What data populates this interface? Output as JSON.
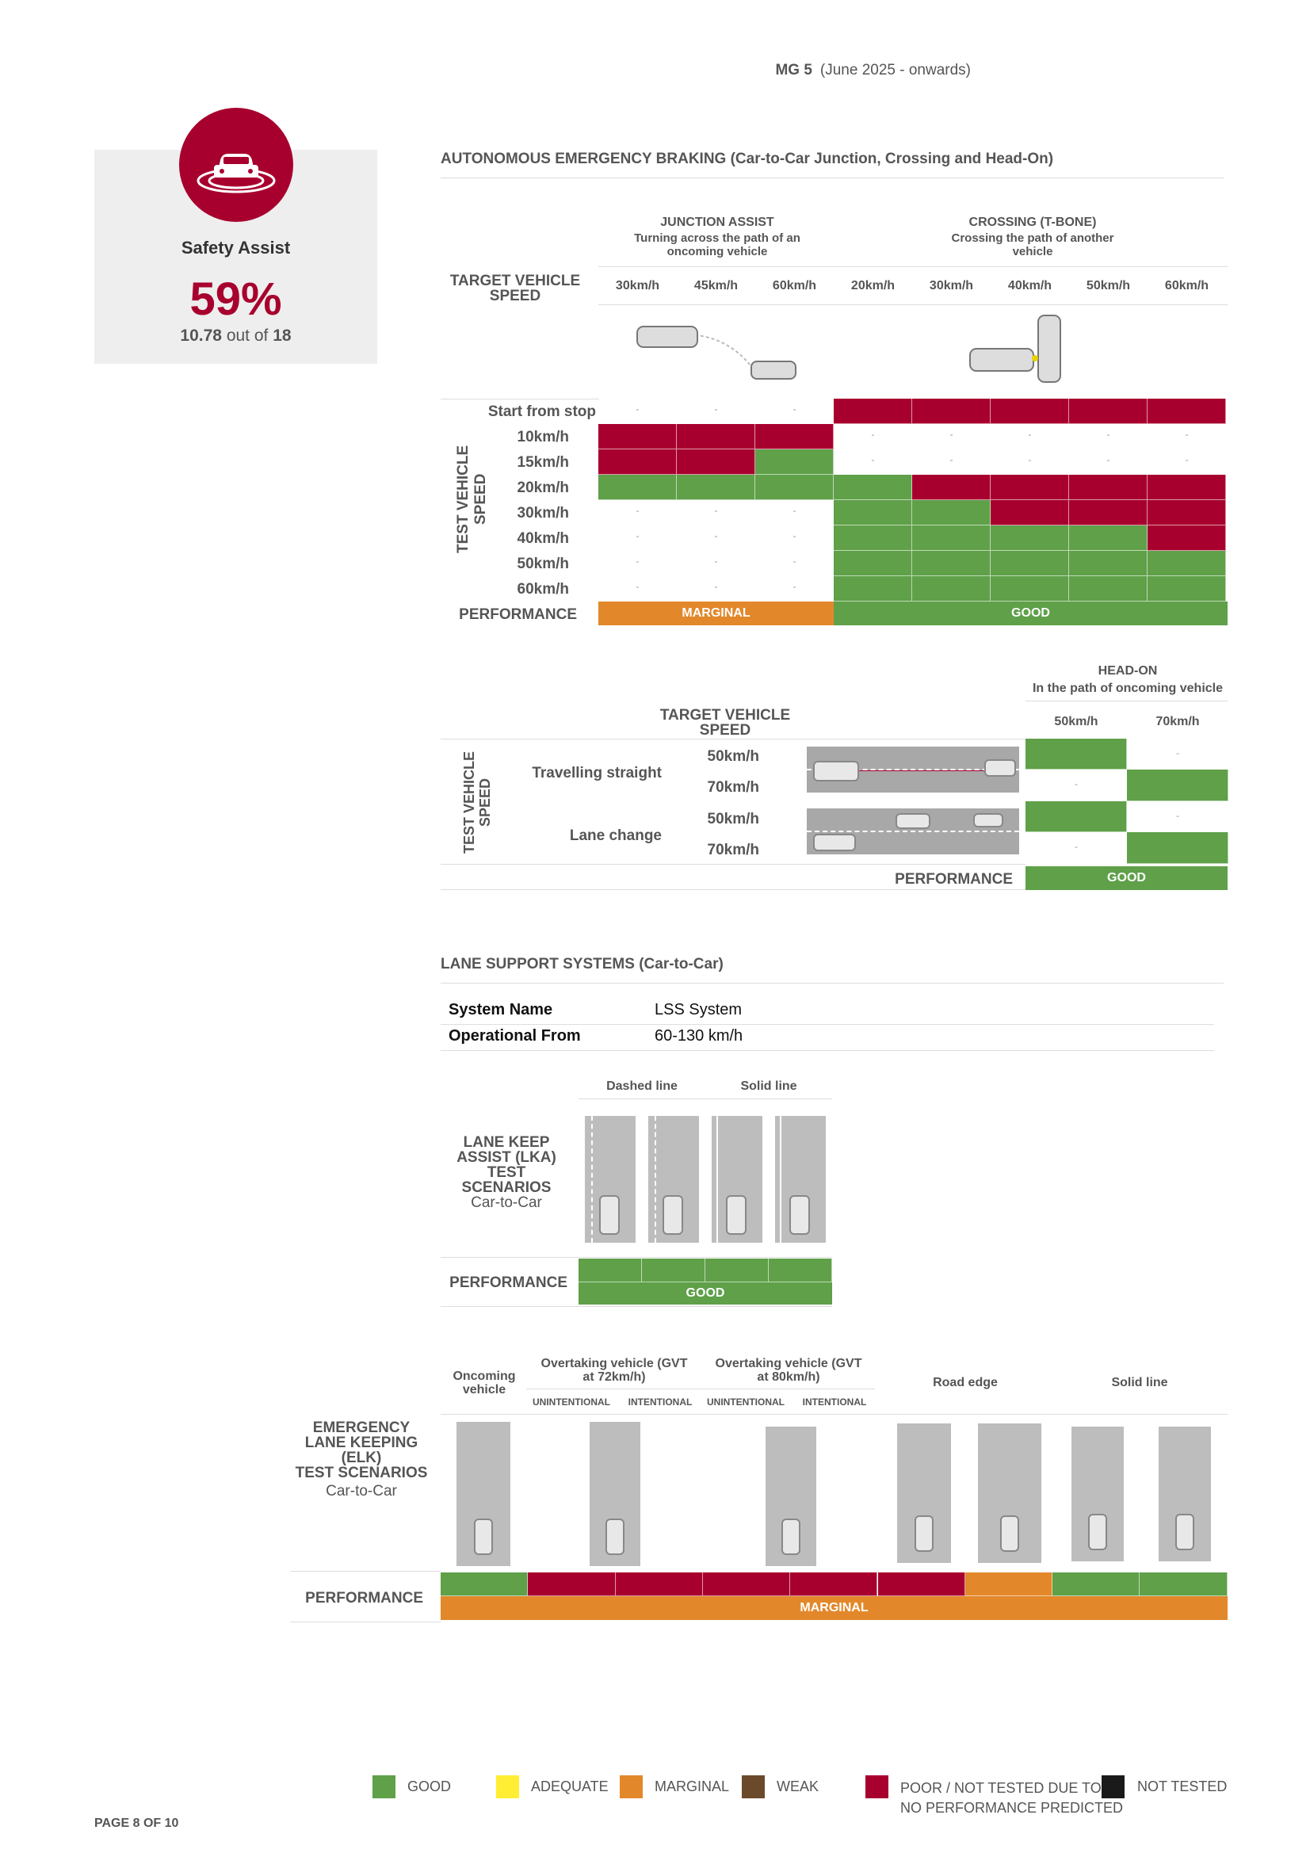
{
  "header": {
    "model": "MG 5",
    "period": "(June 2025 - onwards)"
  },
  "safety_assist": {
    "icon": "car-radar-icon",
    "title": "Safety Assist",
    "percent": "59%",
    "score": "10.78",
    "out_of": "out of",
    "max": "18"
  },
  "aeb": {
    "title": "AUTONOMOUS EMERGENCY BRAKING (Car-to-Car Junction, Crossing and Head-On)",
    "target_label": "TARGET VEHICLE SPEED",
    "test_label": "TEST VEHICLE SPEED",
    "junction": {
      "title": "JUNCTION ASSIST",
      "subtitle": "Turning across the path of an oncoming vehicle"
    },
    "crossing": {
      "title": "CROSSING (T-BONE)",
      "subtitle": "Crossing the path of another vehicle"
    },
    "speeds": [
      "30km/h",
      "45km/h",
      "60km/h",
      "20km/h",
      "30km/h",
      "40km/h",
      "50km/h",
      "60km/h"
    ],
    "rows": [
      "Start from stop",
      "10km/h",
      "15km/h",
      "20km/h",
      "30km/h",
      "40km/h",
      "50km/h",
      "60km/h"
    ],
    "grid": [
      [
        "-",
        "-",
        "-",
        "r",
        "r",
        "r",
        "r",
        "r"
      ],
      [
        "r",
        "r",
        "r",
        "-",
        "-",
        "-",
        "-",
        "-"
      ],
      [
        "r",
        "r",
        "g",
        "-",
        "-",
        "-",
        "-",
        "-"
      ],
      [
        "g",
        "g",
        "g",
        "g",
        "r",
        "r",
        "r",
        "r"
      ],
      [
        "-",
        "-",
        "-",
        "g",
        "g",
        "r",
        "r",
        "r"
      ],
      [
        "-",
        "-",
        "-",
        "g",
        "g",
        "g",
        "g",
        "r"
      ],
      [
        "-",
        "-",
        "-",
        "g",
        "g",
        "g",
        "g",
        "g"
      ],
      [
        "-",
        "-",
        "-",
        "g",
        "g",
        "g",
        "g",
        "g"
      ]
    ],
    "performance_label": "PERFORMANCE",
    "junction_perf": "MARGINAL",
    "crossing_perf": "GOOD"
  },
  "headon": {
    "title": "HEAD-ON",
    "subtitle": "In the path of oncoming vehicle",
    "target_label": "TARGET VEHICLE SPEED",
    "test_label": "TEST VEHICLE SPEED",
    "cols": [
      "50km/h",
      "70km/h"
    ],
    "scenarios": [
      {
        "name": "Travelling straight",
        "speeds": [
          "50km/h",
          "70km/h"
        ]
      },
      {
        "name": "Lane change",
        "speeds": [
          "50km/h",
          "70km/h"
        ]
      }
    ],
    "grid": [
      [
        "g",
        "-"
      ],
      [
        "-",
        "g"
      ],
      [
        "g",
        "-"
      ],
      [
        "-",
        "g"
      ]
    ],
    "performance_label": "PERFORMANCE",
    "performance": "GOOD"
  },
  "lss": {
    "title": "LANE SUPPORT SYSTEMS (Car-to-Car)",
    "system_name_label": "System Name",
    "system_name": "LSS System",
    "operational_label": "Operational From",
    "operational": "60-130 km/h",
    "lka": {
      "label_lines": [
        "LANE KEEP",
        "ASSIST (LKA)",
        "TEST SCENARIOS",
        "Car-to-Car"
      ],
      "dashed": "Dashed line",
      "solid": "Solid line",
      "cells": [
        "g",
        "g",
        "g",
        "g"
      ],
      "performance_label": "PERFORMANCE",
      "performance": "GOOD"
    },
    "elk": {
      "label_lines": [
        "EMERGENCY",
        "LANE KEEPING",
        "(ELK)",
        "TEST SCENARIOS",
        "Car-to-Car"
      ],
      "oncoming": "Oncoming vehicle",
      "overtaking72": "Overtaking vehicle (GVT at 72km/h)",
      "overtaking80": "Overtaking vehicle (GVT at 80km/h)",
      "unintentional": "UNINTENTIONAL",
      "intentional": "INTENTIONAL",
      "road_edge": "Road edge",
      "solid_line": "Solid line",
      "cells": [
        "g",
        "r",
        "r",
        "r",
        "r",
        "r",
        "o",
        "g",
        "g"
      ],
      "performance_label": "PERFORMANCE",
      "performance": "MARGINAL"
    }
  },
  "legend": {
    "good": "GOOD",
    "adequate": "ADEQUATE",
    "marginal": "MARGINAL",
    "weak": "WEAK",
    "poor1": "POOR / NOT TESTED DUE TO",
    "poor2": "NO PERFORMANCE PREDICTED",
    "not_tested": "NOT TESTED",
    "colors": {
      "good": "#5fa049",
      "adequate": "#ffee33",
      "marginal": "#e2882a",
      "weak": "#6b4a2b",
      "poor": "#a8002e",
      "not_tested": "#1a1a1a"
    }
  },
  "footer": {
    "page": "PAGE 8 OF 10"
  }
}
